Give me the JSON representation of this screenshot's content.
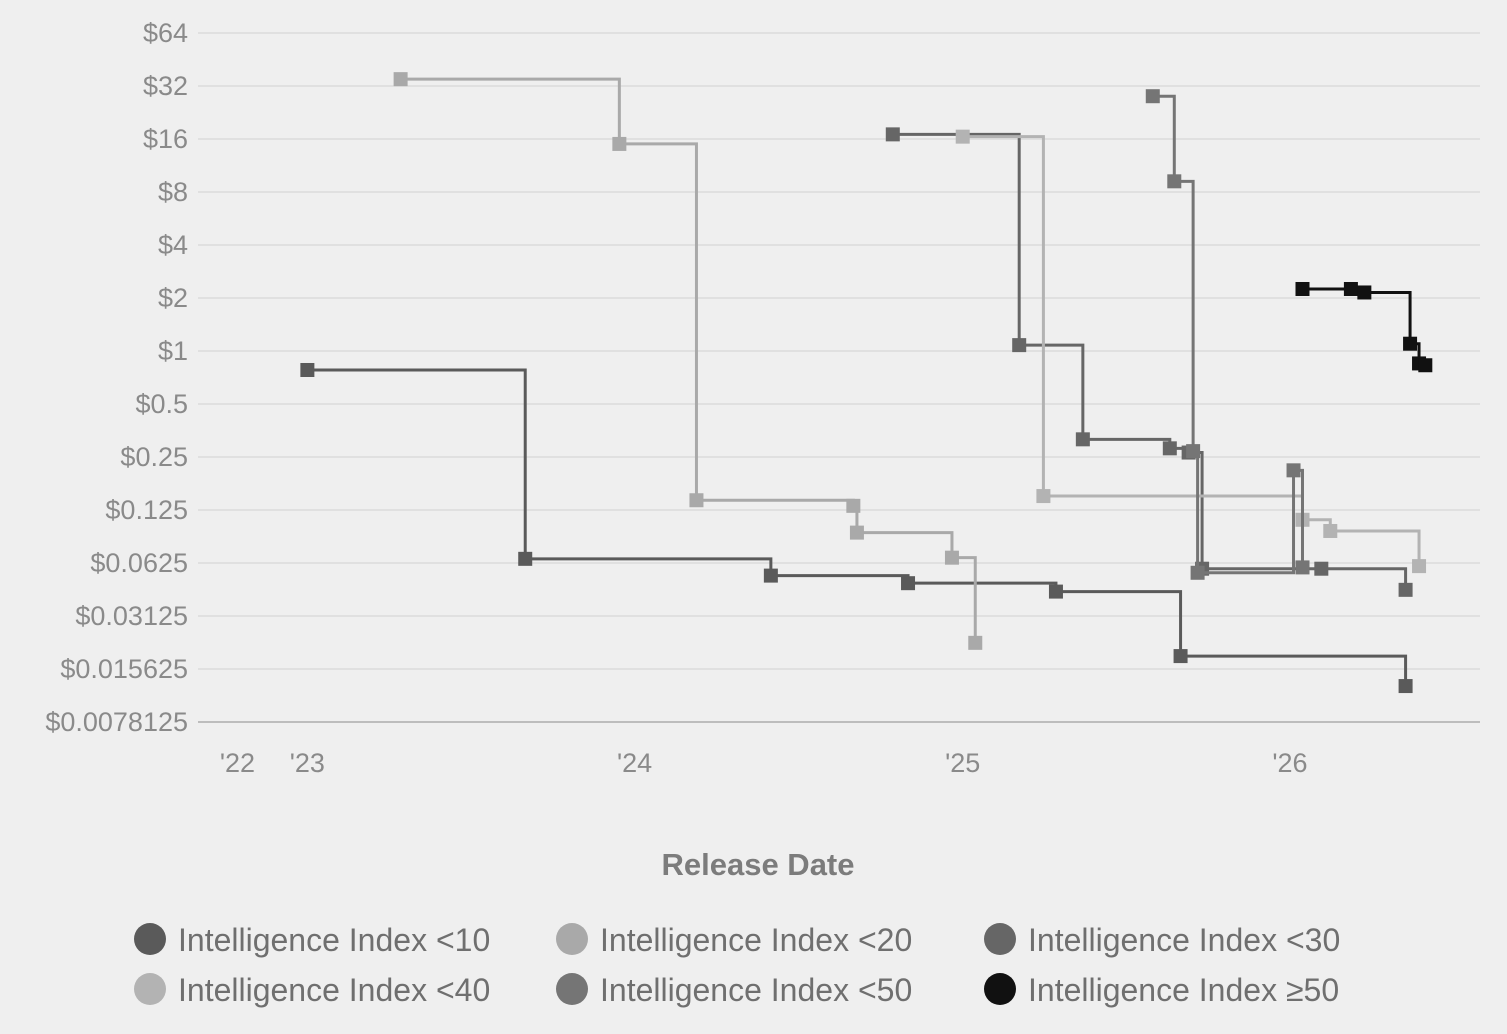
{
  "chart_data": {
    "type": "line",
    "step": true,
    "xlabel": "Release Date",
    "ylabel": "",
    "y_scale": "log2",
    "ylim": [
      0.0078125,
      64
    ],
    "xlim": [
      "2022-09-01",
      "2026-08-01"
    ],
    "grid": true,
    "legend_position": "bottom",
    "y_ticks": [
      {
        "value": 64,
        "label": "$64"
      },
      {
        "value": 32,
        "label": "$32"
      },
      {
        "value": 16,
        "label": "$16"
      },
      {
        "value": 8,
        "label": "$8"
      },
      {
        "value": 4,
        "label": "$4"
      },
      {
        "value": 2,
        "label": "$2"
      },
      {
        "value": 1,
        "label": "$1"
      },
      {
        "value": 0.5,
        "label": "$0.5"
      },
      {
        "value": 0.25,
        "label": "$0.25"
      },
      {
        "value": 0.125,
        "label": "$0.125"
      },
      {
        "value": 0.0625,
        "label": "$0.0625"
      },
      {
        "value": 0.03125,
        "label": "$0.03125"
      },
      {
        "value": 0.015625,
        "label": "$0.015625"
      },
      {
        "value": 0.0078125,
        "label": "$0.0078125"
      }
    ],
    "x_ticks": [
      {
        "value": "2022-10-15",
        "label": "'22"
      },
      {
        "value": "2023-01-01",
        "label": "'23"
      },
      {
        "value": "2024-01-01",
        "label": "'24"
      },
      {
        "value": "2025-01-01",
        "label": "'25"
      },
      {
        "value": "2026-01-01",
        "label": "'26"
      }
    ],
    "series": [
      {
        "name": "Intelligence Index <10",
        "color": "#5a5a5a",
        "x": [
          "2023-01-01",
          "2023-09-01",
          "2024-06-01",
          "2024-11-01",
          "2025-04-15",
          "2025-09-01",
          "2026-05-10"
        ],
        "y": [
          0.78,
          0.066,
          0.053,
          0.048,
          0.043,
          0.0185,
          0.0125
        ]
      },
      {
        "name": "Intelligence Index <20",
        "color": "#a9a9a9",
        "x": [
          "2023-04-15",
          "2023-12-15",
          "2024-03-10",
          "2024-09-01",
          "2024-09-05",
          "2024-12-20",
          "2025-01-15"
        ],
        "y": [
          35,
          15,
          0.142,
          0.132,
          0.093,
          0.067,
          0.022
        ]
      },
      {
        "name": "Intelligence Index <30",
        "color": "#666666",
        "x": [
          "2024-10-15",
          "2025-03-05",
          "2025-05-15",
          "2025-08-20",
          "2025-09-10",
          "2025-09-25",
          "2026-02-05",
          "2026-05-10"
        ],
        "y": [
          17,
          1.08,
          0.315,
          0.28,
          0.265,
          0.058,
          0.058,
          0.044
        ]
      },
      {
        "name": "Intelligence Index <40",
        "color": "#b3b3b3",
        "x": [
          "2025-01-01",
          "2025-04-01",
          "2026-01-15",
          "2026-02-15",
          "2026-05-25"
        ],
        "y": [
          16.5,
          0.15,
          0.11,
          0.095,
          0.06
        ]
      },
      {
        "name": "Intelligence Index <50",
        "color": "#757575",
        "x": [
          "2025-08-01",
          "2025-08-25",
          "2025-09-15",
          "2025-09-20",
          "2026-01-05",
          "2026-01-15"
        ],
        "y": [
          28,
          9.2,
          0.27,
          0.055,
          0.21,
          0.059
        ]
      },
      {
        "name": "Intelligence Index ≥50",
        "color": "#111111",
        "x": [
          "2026-01-15",
          "2026-03-10",
          "2026-03-25",
          "2026-05-15",
          "2026-05-25",
          "2026-06-01"
        ],
        "y": [
          2.25,
          2.25,
          2.15,
          1.1,
          0.85,
          0.83
        ]
      }
    ]
  }
}
